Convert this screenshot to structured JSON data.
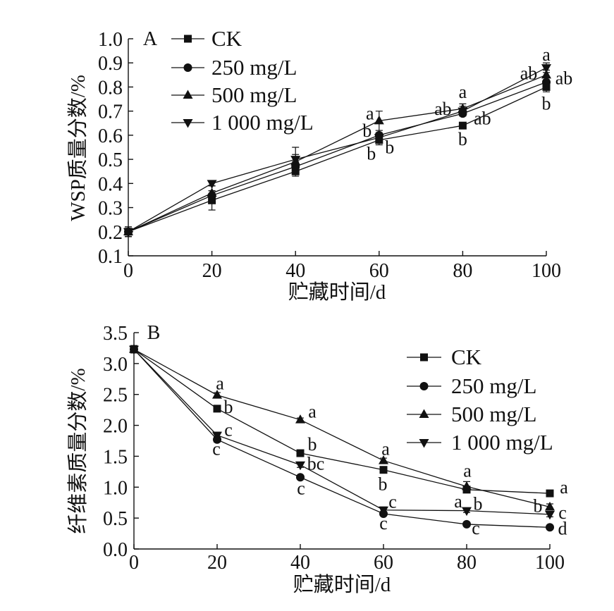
{
  "chart_data": [
    {
      "type": "line",
      "panel_label": "A",
      "xlabel": "贮藏时间/d",
      "ylabel": "WSP质量分数/%",
      "x": [
        0,
        20,
        40,
        60,
        80,
        100
      ],
      "xlim": [
        0,
        100
      ],
      "ylim": [
        0.1,
        1.0
      ],
      "xticks": [
        "0",
        "20",
        "40",
        "60",
        "80",
        "100"
      ],
      "yticks": [
        "0.1",
        "0.2",
        "0.3",
        "0.4",
        "0.5",
        "0.6",
        "0.7",
        "0.8",
        "0.9",
        "1.0"
      ],
      "grid": false,
      "legend_position": "top-left",
      "series": [
        {
          "name": "CK",
          "marker": "square",
          "values": [
            0.2,
            0.33,
            0.45,
            0.58,
            0.64,
            0.8
          ],
          "errors": [
            0.02,
            0.04,
            0.02,
            0.02,
            0.01,
            0.02
          ],
          "letters": [
            "",
            "",
            "",
            "b",
            "b",
            "b"
          ]
        },
        {
          "name": "250 mg/L",
          "marker": "circle",
          "values": [
            0.2,
            0.35,
            0.47,
            0.6,
            0.69,
            0.82
          ],
          "errors": [
            0.02,
            0.02,
            0.02,
            0.02,
            0.01,
            0.02
          ],
          "letters": [
            "",
            "",
            "",
            "b",
            "ab",
            "ab"
          ]
        },
        {
          "name": "500 mg/L",
          "marker": "triangle-up",
          "values": [
            0.2,
            0.36,
            0.49,
            0.66,
            0.71,
            0.85
          ],
          "errors": [
            0.02,
            0.03,
            0.03,
            0.04,
            0.02,
            0.02
          ],
          "letters": [
            "",
            "",
            "",
            "a",
            "a",
            "ab"
          ]
        },
        {
          "name": "1 000 mg/L",
          "marker": "triangle-down",
          "values": [
            0.2,
            0.4,
            0.5,
            0.59,
            0.7,
            0.88
          ],
          "errors": [
            0.02,
            0.01,
            0.05,
            0.02,
            0.02,
            0.02
          ],
          "letters": [
            "",
            "",
            "",
            "b",
            "ab",
            "a"
          ]
        }
      ]
    },
    {
      "type": "line",
      "panel_label": "B",
      "xlabel": "贮藏时间/d",
      "ylabel": "纤维素质量分数/%",
      "x": [
        0,
        20,
        40,
        60,
        80,
        100
      ],
      "xlim": [
        0,
        100
      ],
      "ylim": [
        0.0,
        3.5
      ],
      "xticks": [
        "0",
        "20",
        "40",
        "60",
        "80",
        "100"
      ],
      "yticks": [
        "0.0",
        "0.5",
        "1.0",
        "1.5",
        "2.0",
        "2.5",
        "3.0",
        "3.5"
      ],
      "grid": false,
      "legend_position": "top-right",
      "series": [
        {
          "name": "CK",
          "marker": "square",
          "values": [
            3.23,
            2.27,
            1.55,
            1.28,
            0.96,
            0.9
          ],
          "errors": [
            0.06,
            0.04,
            0.04,
            0.04,
            0.04,
            0.03
          ],
          "letters": [
            "",
            "b",
            "b",
            "b",
            "a",
            "a"
          ]
        },
        {
          "name": "250 mg/L",
          "marker": "circle",
          "values": [
            3.23,
            1.77,
            1.16,
            0.57,
            0.4,
            0.35
          ],
          "errors": [
            0.06,
            0.04,
            0.03,
            0.03,
            0.02,
            0.02
          ],
          "letters": [
            "",
            "c",
            "c",
            "c",
            "c",
            "d"
          ]
        },
        {
          "name": "500 mg/L",
          "marker": "triangle-up",
          "values": [
            3.23,
            2.49,
            2.09,
            1.43,
            1.01,
            0.68
          ],
          "errors": [
            0.06,
            0.04,
            0.03,
            0.04,
            0.08,
            0.05
          ],
          "letters": [
            "",
            "a",
            "a",
            "a",
            "a",
            "b"
          ]
        },
        {
          "name": "1 000 mg/L",
          "marker": "triangle-down",
          "values": [
            3.23,
            1.84,
            1.36,
            0.63,
            0.62,
            0.56
          ],
          "errors": [
            0.06,
            0.05,
            0.04,
            0.05,
            0.03,
            0.04
          ],
          "letters": [
            "",
            "c",
            "bc",
            "c",
            "b",
            "c"
          ]
        }
      ]
    }
  ]
}
